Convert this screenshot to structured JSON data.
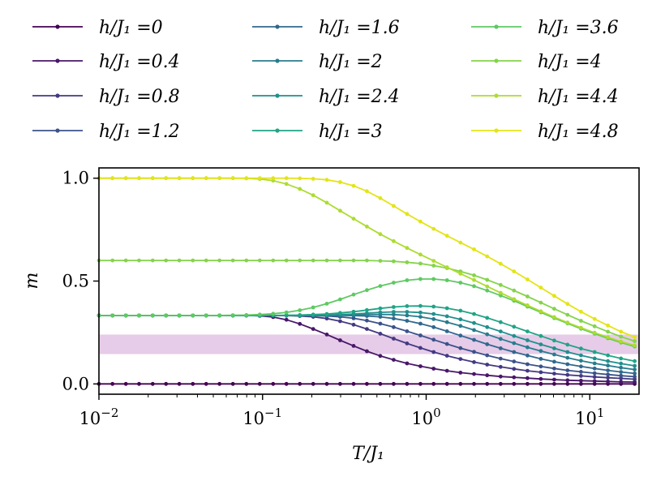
{
  "chart_data": {
    "type": "line",
    "xlabel": "T/J₁",
    "ylabel": "m",
    "xscale": "log",
    "xlim": [
      0.01,
      20
    ],
    "ylim": [
      -0.05,
      1.05
    ],
    "x_ticks": [
      {
        "value": 0.01,
        "base": "10",
        "exp": "−2"
      },
      {
        "value": 0.1,
        "base": "10",
        "exp": "−1"
      },
      {
        "value": 1,
        "base": "10",
        "exp": "0"
      },
      {
        "value": 10,
        "base": "10",
        "exp": "1"
      }
    ],
    "y_ticks": [
      {
        "value": 0.0,
        "label": "0.0"
      },
      {
        "value": 0.5,
        "label": "0.5"
      },
      {
        "value": 1.0,
        "label": "1.0"
      }
    ],
    "shaded_band": {
      "y_range": [
        0.145,
        0.24
      ],
      "color": "#e6cce8"
    },
    "legend_placement": "top, 3 columns",
    "legend_prefix": "h/J₁ =",
    "series": [
      {
        "name": "0",
        "color": "#440154"
      },
      {
        "name": "0.4",
        "color": "#481769"
      },
      {
        "name": "0.8",
        "color": "#443983"
      },
      {
        "name": "1.2",
        "color": "#3b528b"
      },
      {
        "name": "1.6",
        "color": "#31688e"
      },
      {
        "name": "2",
        "color": "#287c8e"
      },
      {
        "name": "2.4",
        "color": "#20908d"
      },
      {
        "name": "3",
        "color": "#20a486"
      },
      {
        "name": "3.6",
        "color": "#5ec962"
      },
      {
        "name": "4",
        "color": "#84d44b"
      },
      {
        "name": "4.4",
        "color": "#addc30"
      },
      {
        "name": "4.8",
        "color": "#e3e418"
      }
    ],
    "x": [
      0.01,
      0.0121,
      0.0146,
      0.0176,
      0.0213,
      0.0257,
      0.031,
      0.0375,
      0.0452,
      0.0546,
      0.0659,
      0.0796,
      0.0961,
      0.116,
      0.14,
      0.169,
      0.204,
      0.247,
      0.298,
      0.36,
      0.434,
      0.524,
      0.633,
      0.764,
      0.922,
      1.11,
      1.34,
      1.62,
      1.96,
      2.36,
      2.85,
      3.44,
      4.16,
      5.02,
      6.06,
      7.31,
      8.83,
      10.7,
      12.9,
      15.5,
      18.8
    ],
    "values": [
      [
        0,
        0,
        0,
        0,
        0,
        0,
        0,
        0,
        0,
        0,
        0,
        0,
        0,
        0,
        0,
        0,
        0,
        0,
        0,
        0,
        0,
        0,
        0,
        0,
        0,
        0,
        0,
        0,
        0,
        0,
        0,
        0,
        0,
        0,
        0,
        0,
        0,
        0,
        0,
        0,
        0
      ],
      [
        0.333,
        0.333,
        0.333,
        0.333,
        0.333,
        0.333,
        0.333,
        0.333,
        0.333,
        0.333,
        0.333,
        0.333,
        0.331,
        0.325,
        0.312,
        0.292,
        0.267,
        0.24,
        0.212,
        0.185,
        0.159,
        0.136,
        0.117,
        0.1,
        0.086,
        0.074,
        0.064,
        0.055,
        0.048,
        0.042,
        0.036,
        0.032,
        0.028,
        0.024,
        0.021,
        0.018,
        0.016,
        0.014,
        0.012,
        0.01,
        0.009
      ],
      [
        0.333,
        0.333,
        0.333,
        0.333,
        0.333,
        0.333,
        0.333,
        0.333,
        0.333,
        0.333,
        0.333,
        0.333,
        0.333,
        0.333,
        0.332,
        0.33,
        0.326,
        0.318,
        0.305,
        0.288,
        0.267,
        0.244,
        0.22,
        0.197,
        0.175,
        0.155,
        0.137,
        0.121,
        0.106,
        0.094,
        0.083,
        0.073,
        0.064,
        0.057,
        0.05,
        0.044,
        0.039,
        0.034,
        0.03,
        0.027,
        0.023
      ],
      [
        0.333,
        0.333,
        0.333,
        0.333,
        0.333,
        0.333,
        0.333,
        0.333,
        0.333,
        0.333,
        0.333,
        0.333,
        0.333,
        0.333,
        0.333,
        0.333,
        0.332,
        0.33,
        0.326,
        0.319,
        0.308,
        0.293,
        0.276,
        0.256,
        0.236,
        0.215,
        0.194,
        0.174,
        0.156,
        0.139,
        0.123,
        0.109,
        0.096,
        0.085,
        0.075,
        0.066,
        0.059,
        0.052,
        0.046,
        0.04,
        0.035
      ],
      [
        0.333,
        0.333,
        0.333,
        0.333,
        0.333,
        0.333,
        0.333,
        0.333,
        0.333,
        0.333,
        0.333,
        0.333,
        0.333,
        0.333,
        0.333,
        0.333,
        0.333,
        0.333,
        0.333,
        0.332,
        0.33,
        0.326,
        0.318,
        0.307,
        0.293,
        0.276,
        0.256,
        0.235,
        0.214,
        0.193,
        0.173,
        0.155,
        0.138,
        0.122,
        0.108,
        0.096,
        0.085,
        0.075,
        0.066,
        0.058,
        0.051
      ],
      [
        0.333,
        0.333,
        0.333,
        0.333,
        0.333,
        0.333,
        0.333,
        0.333,
        0.333,
        0.333,
        0.333,
        0.333,
        0.333,
        0.333,
        0.333,
        0.333,
        0.333,
        0.333,
        0.334,
        0.335,
        0.337,
        0.338,
        0.337,
        0.333,
        0.326,
        0.315,
        0.3,
        0.282,
        0.262,
        0.241,
        0.219,
        0.198,
        0.178,
        0.16,
        0.143,
        0.127,
        0.113,
        0.1,
        0.089,
        0.079,
        0.07
      ],
      [
        0.333,
        0.333,
        0.333,
        0.333,
        0.333,
        0.333,
        0.333,
        0.333,
        0.333,
        0.333,
        0.333,
        0.333,
        0.333,
        0.333,
        0.333,
        0.333,
        0.334,
        0.335,
        0.337,
        0.34,
        0.344,
        0.348,
        0.35,
        0.35,
        0.347,
        0.34,
        0.329,
        0.314,
        0.296,
        0.276,
        0.255,
        0.233,
        0.212,
        0.192,
        0.173,
        0.155,
        0.139,
        0.124,
        0.111,
        0.099,
        0.088
      ],
      [
        0.333,
        0.333,
        0.333,
        0.333,
        0.333,
        0.333,
        0.333,
        0.333,
        0.333,
        0.333,
        0.333,
        0.333,
        0.333,
        0.333,
        0.334,
        0.335,
        0.337,
        0.34,
        0.345,
        0.351,
        0.359,
        0.367,
        0.374,
        0.378,
        0.379,
        0.376,
        0.368,
        0.356,
        0.34,
        0.321,
        0.3,
        0.278,
        0.255,
        0.233,
        0.211,
        0.191,
        0.172,
        0.155,
        0.139,
        0.124,
        0.111
      ],
      [
        0.333,
        0.333,
        0.333,
        0.333,
        0.333,
        0.333,
        0.333,
        0.333,
        0.333,
        0.333,
        0.334,
        0.335,
        0.337,
        0.341,
        0.348,
        0.358,
        0.372,
        0.39,
        0.411,
        0.434,
        0.456,
        0.476,
        0.492,
        0.504,
        0.51,
        0.51,
        0.504,
        0.492,
        0.475,
        0.454,
        0.43,
        0.404,
        0.376,
        0.348,
        0.32,
        0.294,
        0.268,
        0.244,
        0.222,
        0.201,
        0.182
      ],
      [
        0.6,
        0.6,
        0.6,
        0.6,
        0.6,
        0.6,
        0.6,
        0.6,
        0.6,
        0.6,
        0.6,
        0.6,
        0.6,
        0.6,
        0.6,
        0.6,
        0.6,
        0.6,
        0.6,
        0.6,
        0.6,
        0.598,
        0.596,
        0.591,
        0.585,
        0.575,
        0.563,
        0.547,
        0.528,
        0.506,
        0.481,
        0.454,
        0.425,
        0.395,
        0.365,
        0.336,
        0.307,
        0.28,
        0.254,
        0.23,
        0.208
      ],
      [
        1.0,
        1.0,
        1.0,
        1.0,
        1.0,
        1.0,
        1.0,
        1.0,
        1.0,
        1.0,
        1.0,
        0.999,
        0.996,
        0.988,
        0.972,
        0.948,
        0.917,
        0.881,
        0.842,
        0.803,
        0.765,
        0.728,
        0.694,
        0.661,
        0.629,
        0.598,
        0.567,
        0.536,
        0.505,
        0.474,
        0.443,
        0.412,
        0.382,
        0.353,
        0.325,
        0.298,
        0.273,
        0.249,
        0.227,
        0.206,
        0.187
      ],
      [
        1.0,
        1.0,
        1.0,
        1.0,
        1.0,
        1.0,
        1.0,
        1.0,
        1.0,
        1.0,
        1.0,
        1.0,
        1.0,
        1.0,
        1.0,
        0.999,
        0.997,
        0.992,
        0.981,
        0.963,
        0.937,
        0.903,
        0.865,
        0.826,
        0.789,
        0.754,
        0.72,
        0.687,
        0.654,
        0.62,
        0.584,
        0.547,
        0.508,
        0.468,
        0.428,
        0.389,
        0.351,
        0.316,
        0.284,
        0.254,
        0.228
      ]
    ]
  }
}
